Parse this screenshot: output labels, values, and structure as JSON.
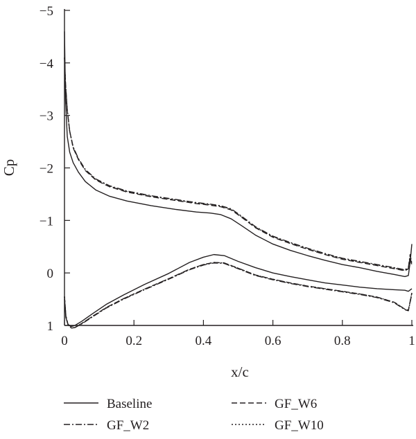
{
  "chart_data": {
    "type": "line",
    "title": "",
    "xlabel": "x/c",
    "ylabel": "Cp",
    "xlim": [
      0,
      1
    ],
    "ylim": [
      -5,
      1
    ],
    "y_inverted": true,
    "grid": false,
    "legend_position": "bottom",
    "x_ticks": [
      "0",
      "0.2",
      "0.4",
      "0.6",
      "0.8",
      "1"
    ],
    "y_ticks": [
      "−5",
      "−4",
      "−3",
      "−2",
      "−1",
      "0",
      "1"
    ],
    "series": [
      {
        "name": "Baseline",
        "style": "solid",
        "upper": [
          [
            0.0,
            -4.6
          ],
          [
            0.003,
            -3.3
          ],
          [
            0.008,
            -2.6
          ],
          [
            0.015,
            -2.3
          ],
          [
            0.025,
            -2.1
          ],
          [
            0.04,
            -1.92
          ],
          [
            0.06,
            -1.74
          ],
          [
            0.09,
            -1.58
          ],
          [
            0.13,
            -1.46
          ],
          [
            0.18,
            -1.37
          ],
          [
            0.25,
            -1.28
          ],
          [
            0.32,
            -1.21
          ],
          [
            0.38,
            -1.16
          ],
          [
            0.42,
            -1.14
          ],
          [
            0.45,
            -1.11
          ],
          [
            0.48,
            -1.03
          ],
          [
            0.51,
            -0.9
          ],
          [
            0.55,
            -0.72
          ],
          [
            0.6,
            -0.55
          ],
          [
            0.65,
            -0.43
          ],
          [
            0.7,
            -0.33
          ],
          [
            0.75,
            -0.24
          ],
          [
            0.8,
            -0.16
          ],
          [
            0.85,
            -0.1
          ],
          [
            0.9,
            -0.03
          ],
          [
            0.95,
            0.03
          ],
          [
            0.98,
            0.07
          ],
          [
            0.99,
            0.05
          ],
          [
            0.995,
            -0.2
          ],
          [
            1.0,
            -0.55
          ]
        ],
        "lower": [
          [
            0.0,
            0.5
          ],
          [
            0.004,
            0.85
          ],
          [
            0.01,
            0.98
          ],
          [
            0.02,
            1.02
          ],
          [
            0.03,
            1.0
          ],
          [
            0.05,
            0.92
          ],
          [
            0.08,
            0.78
          ],
          [
            0.12,
            0.6
          ],
          [
            0.17,
            0.42
          ],
          [
            0.23,
            0.22
          ],
          [
            0.3,
            0.01
          ],
          [
            0.36,
            -0.2
          ],
          [
            0.4,
            -0.3
          ],
          [
            0.43,
            -0.35
          ],
          [
            0.46,
            -0.33
          ],
          [
            0.5,
            -0.22
          ],
          [
            0.55,
            -0.1
          ],
          [
            0.6,
            0.0
          ],
          [
            0.65,
            0.07
          ],
          [
            0.7,
            0.13
          ],
          [
            0.75,
            0.19
          ],
          [
            0.8,
            0.23
          ],
          [
            0.85,
            0.27
          ],
          [
            0.9,
            0.3
          ],
          [
            0.95,
            0.32
          ],
          [
            0.98,
            0.33
          ],
          [
            0.99,
            0.35
          ],
          [
            1.0,
            0.3
          ]
        ]
      },
      {
        "name": "GF_W2",
        "style": "dashdot",
        "upper": [
          [
            0.0,
            -4.1
          ],
          [
            0.003,
            -3.6
          ],
          [
            0.008,
            -3.1
          ],
          [
            0.015,
            -2.7
          ],
          [
            0.025,
            -2.4
          ],
          [
            0.04,
            -2.18
          ],
          [
            0.06,
            -1.97
          ],
          [
            0.09,
            -1.79
          ],
          [
            0.13,
            -1.66
          ],
          [
            0.18,
            -1.56
          ],
          [
            0.25,
            -1.47
          ],
          [
            0.32,
            -1.4
          ],
          [
            0.38,
            -1.34
          ],
          [
            0.42,
            -1.31
          ],
          [
            0.45,
            -1.28
          ],
          [
            0.48,
            -1.22
          ],
          [
            0.51,
            -1.08
          ],
          [
            0.55,
            -0.88
          ],
          [
            0.6,
            -0.7
          ],
          [
            0.65,
            -0.58
          ],
          [
            0.7,
            -0.47
          ],
          [
            0.75,
            -0.37
          ],
          [
            0.8,
            -0.28
          ],
          [
            0.85,
            -0.22
          ],
          [
            0.9,
            -0.16
          ],
          [
            0.95,
            -0.1
          ],
          [
            0.98,
            -0.06
          ],
          [
            0.99,
            -0.1
          ],
          [
            0.995,
            -0.35
          ],
          [
            1.0,
            -0.18
          ]
        ],
        "lower": [
          [
            0.0,
            0.45
          ],
          [
            0.004,
            0.82
          ],
          [
            0.01,
            0.98
          ],
          [
            0.02,
            1.05
          ],
          [
            0.03,
            1.04
          ],
          [
            0.05,
            0.97
          ],
          [
            0.08,
            0.84
          ],
          [
            0.12,
            0.67
          ],
          [
            0.17,
            0.5
          ],
          [
            0.23,
            0.32
          ],
          [
            0.3,
            0.12
          ],
          [
            0.36,
            -0.06
          ],
          [
            0.4,
            -0.15
          ],
          [
            0.43,
            -0.19
          ],
          [
            0.46,
            -0.18
          ],
          [
            0.5,
            -0.08
          ],
          [
            0.55,
            0.05
          ],
          [
            0.6,
            0.13
          ],
          [
            0.65,
            0.2
          ],
          [
            0.7,
            0.26
          ],
          [
            0.75,
            0.31
          ],
          [
            0.8,
            0.36
          ],
          [
            0.85,
            0.41
          ],
          [
            0.9,
            0.47
          ],
          [
            0.95,
            0.57
          ],
          [
            0.98,
            0.7
          ],
          [
            0.99,
            0.72
          ],
          [
            1.0,
            0.4
          ]
        ]
      },
      {
        "name": "GF_W6",
        "style": "dashed",
        "upper": [
          [
            0.0,
            -4.1
          ],
          [
            0.003,
            -3.6
          ],
          [
            0.008,
            -3.1
          ],
          [
            0.015,
            -2.7
          ],
          [
            0.025,
            -2.38
          ],
          [
            0.04,
            -2.16
          ],
          [
            0.06,
            -1.95
          ],
          [
            0.09,
            -1.77
          ],
          [
            0.13,
            -1.64
          ],
          [
            0.18,
            -1.54
          ],
          [
            0.25,
            -1.45
          ],
          [
            0.32,
            -1.38
          ],
          [
            0.38,
            -1.32
          ],
          [
            0.42,
            -1.29
          ],
          [
            0.45,
            -1.26
          ],
          [
            0.48,
            -1.2
          ],
          [
            0.51,
            -1.06
          ],
          [
            0.55,
            -0.86
          ],
          [
            0.6,
            -0.68
          ],
          [
            0.65,
            -0.56
          ],
          [
            0.7,
            -0.45
          ],
          [
            0.75,
            -0.35
          ],
          [
            0.8,
            -0.26
          ],
          [
            0.85,
            -0.2
          ],
          [
            0.9,
            -0.14
          ],
          [
            0.95,
            -0.08
          ],
          [
            0.98,
            -0.04
          ],
          [
            0.99,
            -0.08
          ],
          [
            0.995,
            -0.3
          ],
          [
            1.0,
            -0.15
          ]
        ],
        "lower": [
          [
            0.0,
            0.45
          ],
          [
            0.004,
            0.82
          ],
          [
            0.01,
            0.98
          ],
          [
            0.02,
            1.05
          ],
          [
            0.03,
            1.04
          ],
          [
            0.05,
            0.96
          ],
          [
            0.08,
            0.83
          ],
          [
            0.12,
            0.66
          ],
          [
            0.17,
            0.49
          ],
          [
            0.23,
            0.31
          ],
          [
            0.3,
            0.11
          ],
          [
            0.36,
            -0.07
          ],
          [
            0.4,
            -0.16
          ],
          [
            0.43,
            -0.2
          ],
          [
            0.46,
            -0.19
          ],
          [
            0.5,
            -0.09
          ],
          [
            0.55,
            0.04
          ],
          [
            0.6,
            0.12
          ],
          [
            0.65,
            0.19
          ],
          [
            0.7,
            0.25
          ],
          [
            0.75,
            0.3
          ],
          [
            0.8,
            0.35
          ],
          [
            0.85,
            0.4
          ],
          [
            0.9,
            0.46
          ],
          [
            0.95,
            0.56
          ],
          [
            0.98,
            0.69
          ],
          [
            0.99,
            0.71
          ],
          [
            1.0,
            0.38
          ]
        ]
      },
      {
        "name": "GF_W10",
        "style": "dotted",
        "upper": [
          [
            0.0,
            -4.1
          ],
          [
            0.003,
            -3.6
          ],
          [
            0.008,
            -3.1
          ],
          [
            0.015,
            -2.7
          ],
          [
            0.025,
            -2.39
          ],
          [
            0.04,
            -2.17
          ],
          [
            0.06,
            -1.96
          ],
          [
            0.09,
            -1.78
          ],
          [
            0.13,
            -1.65
          ],
          [
            0.18,
            -1.55
          ],
          [
            0.25,
            -1.46
          ],
          [
            0.32,
            -1.39
          ],
          [
            0.38,
            -1.33
          ],
          [
            0.42,
            -1.3
          ],
          [
            0.45,
            -1.27
          ],
          [
            0.48,
            -1.21
          ],
          [
            0.51,
            -1.07
          ],
          [
            0.55,
            -0.87
          ],
          [
            0.6,
            -0.69
          ],
          [
            0.65,
            -0.57
          ],
          [
            0.7,
            -0.46
          ],
          [
            0.75,
            -0.36
          ],
          [
            0.8,
            -0.27
          ],
          [
            0.85,
            -0.21
          ],
          [
            0.9,
            -0.15
          ],
          [
            0.95,
            -0.09
          ],
          [
            0.98,
            -0.05
          ],
          [
            0.99,
            -0.09
          ],
          [
            0.995,
            -0.32
          ],
          [
            1.0,
            -0.16
          ]
        ],
        "lower": [
          [
            0.0,
            0.45
          ],
          [
            0.004,
            0.82
          ],
          [
            0.01,
            0.98
          ],
          [
            0.02,
            1.05
          ],
          [
            0.03,
            1.04
          ],
          [
            0.05,
            0.96
          ],
          [
            0.08,
            0.83
          ],
          [
            0.12,
            0.66
          ],
          [
            0.17,
            0.49
          ],
          [
            0.23,
            0.31
          ],
          [
            0.3,
            0.11
          ],
          [
            0.36,
            -0.07
          ],
          [
            0.4,
            -0.16
          ],
          [
            0.43,
            -0.2
          ],
          [
            0.46,
            -0.19
          ],
          [
            0.5,
            -0.09
          ],
          [
            0.55,
            0.04
          ],
          [
            0.6,
            0.12
          ],
          [
            0.65,
            0.19
          ],
          [
            0.7,
            0.25
          ],
          [
            0.75,
            0.3
          ],
          [
            0.8,
            0.35
          ],
          [
            0.85,
            0.4
          ],
          [
            0.9,
            0.46
          ],
          [
            0.95,
            0.56
          ],
          [
            0.98,
            0.69
          ],
          [
            0.99,
            0.71
          ],
          [
            1.0,
            0.38
          ]
        ]
      }
    ]
  }
}
